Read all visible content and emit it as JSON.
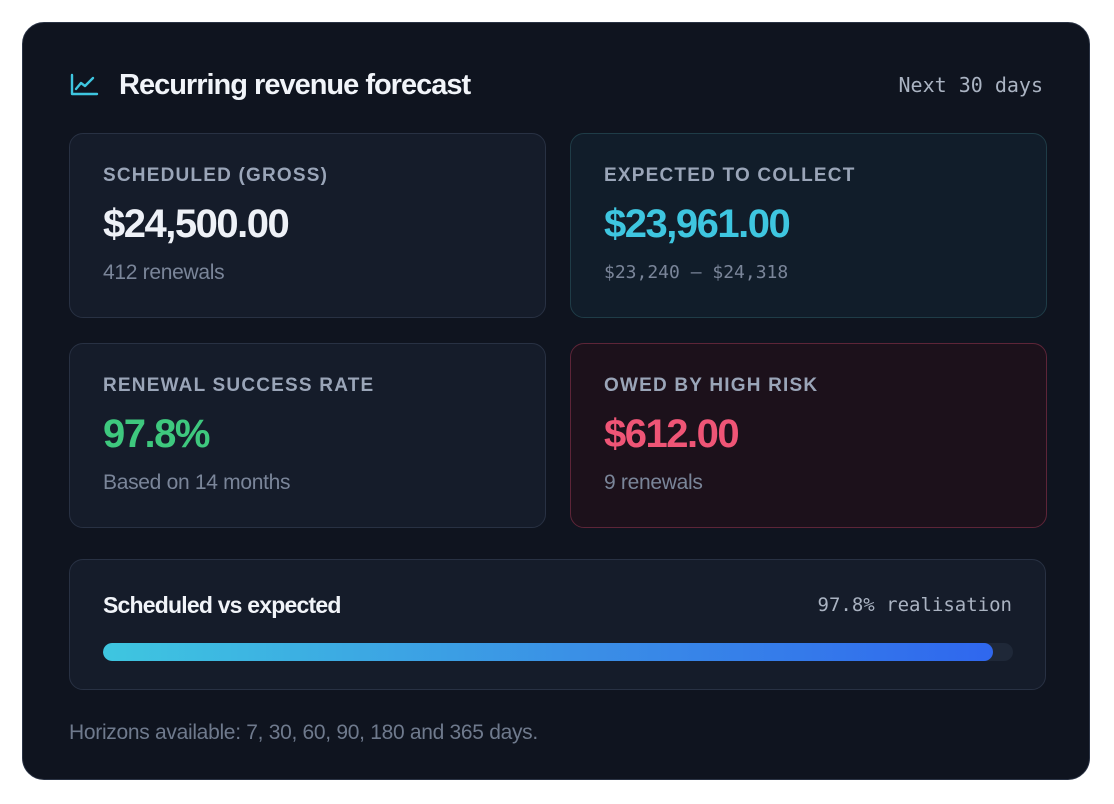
{
  "header": {
    "title": "Recurring revenue forecast",
    "horizon": "Next 30 days",
    "icon": "line-chart-icon",
    "icon_color": "#3ec6e0"
  },
  "tiles": {
    "scheduled": {
      "label": "SCHEDULED (GROSS)",
      "value": "$24,500.00",
      "sub": "412 renewals"
    },
    "expected": {
      "label": "EXPECTED TO COLLECT",
      "value": "$23,961.00",
      "sub": "$23,240 – $24,318"
    },
    "success_rate": {
      "label": "RENEWAL SUCCESS RATE",
      "value": "97.8%",
      "sub": "Based on 14 months"
    },
    "high_risk": {
      "label": "OWED BY HIGH RISK",
      "value": "$612.00",
      "sub": "9 renewals"
    }
  },
  "comparison": {
    "title": "Scheduled vs expected",
    "rate_label": "97.8% realisation",
    "fill_percent": 97.8,
    "gradient_colors": [
      "#3ec6e0",
      "#2f67ee"
    ]
  },
  "footer": {
    "note": "Horizons available: 7, 30, 60, 90, 180 and 365 days."
  },
  "colors": {
    "accent_cyan": "#3ec6e0",
    "success_green": "#3ec87e",
    "risk_red": "#ef5576",
    "card_background": "#0f141f"
  }
}
